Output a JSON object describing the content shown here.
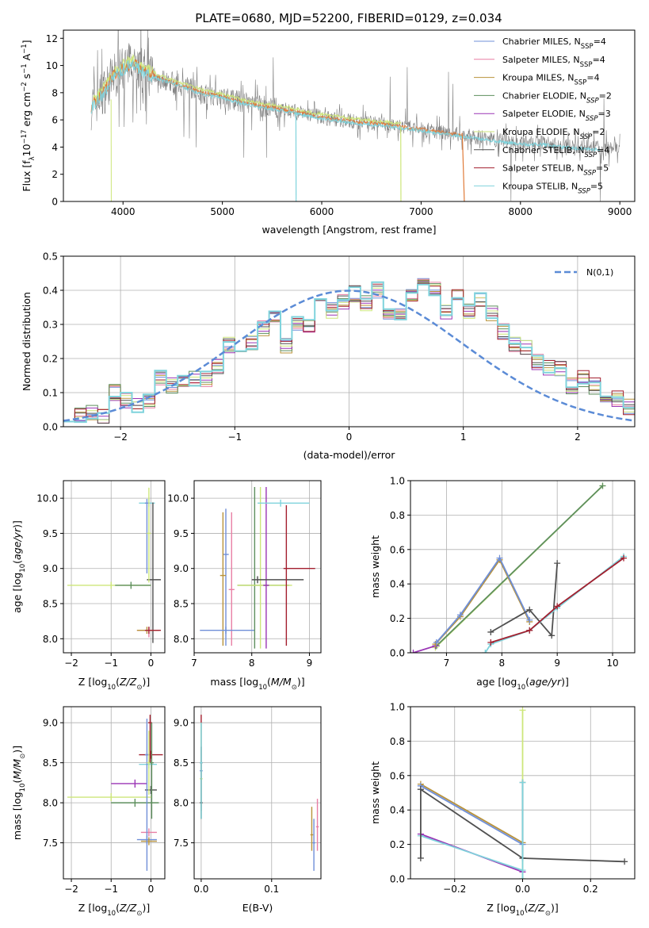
{
  "page_title": "PLATE=0680, MJD=52200, FIBERID=0129, z=0.034",
  "colors": {
    "Chabrier MILES": "#6f8fd8",
    "Salpeter MILES": "#e87fa4",
    "Kroupa MILES": "#b8923a",
    "Chabrier ELODIE": "#5e8f5e",
    "Salpeter ELODIE": "#9a35b5",
    "Kroupa ELODIE": "#cde67a",
    "Chabrier STELIB": "#505050",
    "Salpeter STELIB": "#a31f2e",
    "Kroupa STELIB": "#7fd3dc",
    "orange_model": "#e07b39",
    "data_grey": "#808080",
    "normal_curve": "#5b8bd6",
    "grid": "#b0b0b0"
  },
  "chart_data": [
    {
      "id": "spectrum",
      "type": "line",
      "title": "PLATE=0680, MJD=52200, FIBERID=0129, z=0.034",
      "xlabel": "wavelength [Angstrom, rest frame]",
      "ylabel_parts": [
        "Flux [f",
        "λ",
        "10",
        "−17",
        " erg cm",
        "−2",
        " s",
        "−1",
        " A",
        "−1",
        "]"
      ],
      "xlim": [
        3400,
        9150
      ],
      "ylim": [
        0,
        12.6
      ],
      "xticks": [
        4000,
        5000,
        6000,
        7000,
        8000,
        9000
      ],
      "yticks": [
        0,
        2,
        4,
        6,
        8,
        10,
        12
      ],
      "legend_position": "upper right",
      "legend": [
        {
          "name": "Chabrier MILES",
          "n": "4"
        },
        {
          "name": "Salpeter MILES",
          "n": "4"
        },
        {
          "name": "Kroupa MILES",
          "n": "4"
        },
        {
          "name": "Chabrier ELODIE",
          "n": "2"
        },
        {
          "name": "Salpeter ELODIE",
          "n": "3"
        },
        {
          "name": "Kroupa ELODIE",
          "n": "2"
        },
        {
          "name": "Chabrier STELIB",
          "n": "4"
        },
        {
          "name": "Salpeter STELIB",
          "n": "5"
        },
        {
          "name": "Kroupa STELIB",
          "n": "5"
        }
      ],
      "continuum_x": [
        3680,
        3800,
        3900,
        4000,
        4100,
        4200,
        4400,
        4600,
        4800,
        5000,
        5200,
        5400,
        5600,
        5800,
        6000,
        6200,
        6400,
        6600,
        6800,
        7000,
        7200,
        7400,
        7600,
        7800,
        8000,
        8200,
        8400,
        8600,
        8800
      ],
      "continuum_y": [
        7.0,
        8.0,
        9.2,
        9.8,
        10.2,
        9.6,
        9.0,
        8.5,
        8.0,
        7.7,
        7.3,
        7.0,
        6.8,
        6.5,
        6.2,
        6.0,
        5.8,
        5.7,
        5.5,
        5.3,
        5.1,
        4.9,
        4.7,
        4.5,
        4.3,
        4.3,
        4.1,
        4.0,
        3.9
      ]
    },
    {
      "id": "residuals",
      "type": "step",
      "xlabel": "(data-model)/error",
      "ylabel": "Normed distribution",
      "xlim": [
        -2.5,
        2.5
      ],
      "ylim": [
        0,
        0.5
      ],
      "xticks": [
        -2,
        -1,
        0,
        1,
        2
      ],
      "yticks": [
        0.0,
        0.1,
        0.2,
        0.3,
        0.4,
        0.5
      ],
      "bin_edges_start": -2.5,
      "bin_width": 0.1,
      "base_values": [
        0.04,
        0.03,
        0.045,
        0.03,
        0.1,
        0.08,
        0.06,
        0.075,
        0.14,
        0.12,
        0.13,
        0.14,
        0.14,
        0.18,
        0.24,
        0.22,
        0.25,
        0.29,
        0.32,
        0.24,
        0.3,
        0.3,
        0.37,
        0.34,
        0.37,
        0.39,
        0.36,
        0.4,
        0.34,
        0.33,
        0.38,
        0.41,
        0.4,
        0.34,
        0.38,
        0.34,
        0.37,
        0.33,
        0.28,
        0.24,
        0.23,
        0.19,
        0.17,
        0.17,
        0.12,
        0.14,
        0.12,
        0.08,
        0.08,
        0.06
      ],
      "normal_label": "N(0,1)",
      "legend_position": "upper right"
    },
    {
      "id": "age_vs_Z",
      "type": "errorbar",
      "xlabel": "Z [log10(Z/Z⊙)]",
      "ylabel": "age [log10(age/yr)]",
      "xlim": [
        -2.2,
        0.35
      ],
      "ylim": [
        7.8,
        10.25
      ],
      "xticks": [
        -2,
        -1,
        0
      ],
      "yticks": [
        8.0,
        8.5,
        9.0,
        9.5,
        10.0
      ],
      "points": [
        {
          "model": "Kroupa STELIB",
          "x": -0.05,
          "y": 9.93,
          "xerr": [
            0.25,
            0.15
          ],
          "yerr": [
            0.05,
            0.06
          ]
        },
        {
          "model": "Chabrier MILES",
          "x": -0.1,
          "y": 9.93,
          "xerr": [
            0.05,
            0.05
          ],
          "yerr": [
            1.0,
            0.06
          ]
        },
        {
          "model": "Chabrier STELIB",
          "x": 0.05,
          "y": 8.84,
          "xerr": [
            0.15,
            0.2
          ],
          "yerr": [
            0.9,
            1.1
          ]
        },
        {
          "model": "Kroupa ELODIE",
          "x": -1.0,
          "y": 8.76,
          "xerr": [
            1.1,
            1.0
          ],
          "yerr": [
            0.05,
            0.05
          ]
        },
        {
          "model": "Chabrier ELODIE",
          "x": -0.5,
          "y": 8.76,
          "xerr": [
            0.4,
            0.5
          ],
          "yerr": [
            0.05,
            0.05
          ]
        },
        {
          "model": "Kroupa ELODIE",
          "x": -0.05,
          "y": 9.5,
          "xerr": [
            0.05,
            0.05
          ],
          "yerr": [
            0.7,
            0.65
          ]
        },
        {
          "model": "Salpeter MILES",
          "x": -0.05,
          "y": 8.12,
          "xerr": [
            0.3,
            0.25
          ],
          "yerr": [
            0.1,
            0.05
          ]
        },
        {
          "model": "Kroupa MILES",
          "x": -0.1,
          "y": 8.12,
          "xerr": [
            0.25,
            0.3
          ],
          "yerr": [
            0.05,
            0.05
          ]
        },
        {
          "model": "Salpeter STELIB",
          "x": -0.05,
          "y": 8.12,
          "xerr": [
            0.1,
            0.3
          ],
          "yerr": [
            0.05,
            0.05
          ]
        }
      ]
    },
    {
      "id": "age_vs_mass",
      "type": "errorbar",
      "xlabel": "mass [log10(M/M⊙)]",
      "ylabel": "",
      "xlim": [
        7.0,
        9.2
      ],
      "ylim": [
        7.8,
        10.25
      ],
      "xticks": [
        7,
        8,
        9
      ],
      "yticks": [
        8.0,
        8.5,
        9.0,
        9.5,
        10.0
      ],
      "points": [
        {
          "model": "Chabrier MILES",
          "x": 7.55,
          "y": 9.2,
          "xerr": [
            0.05,
            0.05
          ],
          "yerr": [
            1.3,
            0.65
          ]
        },
        {
          "model": "Kroupa MILES",
          "x": 7.5,
          "y": 8.9,
          "xerr": [
            0.05,
            0.05
          ],
          "yerr": [
            1.0,
            0.9
          ]
        },
        {
          "model": "Salpeter MILES",
          "x": 7.65,
          "y": 8.7,
          "xerr": [
            0.05,
            0.05
          ],
          "yerr": [
            0.8,
            1.1
          ]
        },
        {
          "model": "Chabrier MILES",
          "x": 7.55,
          "y": 8.12,
          "xerr": [
            0.45,
            0.5
          ],
          "yerr": [
            0.05,
            0.05
          ]
        },
        {
          "model": "Chabrier ELODIE",
          "x": 8.05,
          "y": 8.76,
          "xerr": [
            0.3,
            0.6
          ],
          "yerr": [
            0.9,
            1.4
          ]
        },
        {
          "model": "Kroupa ELODIE",
          "x": 8.15,
          "y": 8.76,
          "xerr": [
            0.4,
            0.55
          ],
          "yerr": [
            0.9,
            1.4
          ]
        },
        {
          "model": "Salpeter ELODIE",
          "x": 8.25,
          "y": 8.76,
          "xerr": [
            0.05,
            0.05
          ],
          "yerr": [
            0.9,
            1.4
          ]
        },
        {
          "model": "Chabrier STELIB",
          "x": 8.1,
          "y": 8.84,
          "xerr": [
            0.1,
            0.8
          ],
          "yerr": [
            0.05,
            0.05
          ]
        },
        {
          "model": "Salpeter STELIB",
          "x": 8.6,
          "y": 9.0,
          "xerr": [
            0.05,
            0.5
          ],
          "yerr": [
            1.1,
            0.9
          ]
        },
        {
          "model": "Kroupa STELIB",
          "x": 8.5,
          "y": 9.93,
          "xerr": [
            0.4,
            0.5
          ],
          "yerr": [
            0.05,
            0.05
          ]
        }
      ]
    },
    {
      "id": "massweight_vs_age",
      "type": "line",
      "xlabel": "age [log10(age/yr)]",
      "ylabel": "mass weight",
      "xlim": [
        6.35,
        10.4
      ],
      "ylim": [
        0,
        1
      ],
      "xticks": [
        7,
        8,
        9,
        10
      ],
      "yticks": [
        0.0,
        0.2,
        0.4,
        0.6,
        0.8,
        1.0
      ],
      "series": [
        {
          "model": "Kroupa ELODIE",
          "x": [
            6.8,
            9.82
          ],
          "y": [
            0.03,
            0.97
          ]
        },
        {
          "model": "Chabrier ELODIE",
          "x": [
            6.82,
            9.82
          ],
          "y": [
            0.04,
            0.97
          ]
        },
        {
          "model": "Salpeter ELODIE",
          "x": [
            6.4,
            6.8
          ],
          "y": [
            0.0,
            0.04
          ]
        },
        {
          "model": "Kroupa MILES",
          "x": [
            6.8,
            7.25,
            7.96,
            8.5
          ],
          "y": [
            0.05,
            0.21,
            0.54,
            0.18
          ]
        },
        {
          "model": "Chabrier MILES",
          "x": [
            6.82,
            7.25,
            7.96,
            8.5
          ],
          "y": [
            0.06,
            0.22,
            0.55,
            0.19
          ]
        },
        {
          "model": "Chabrier STELIB",
          "x": [
            7.8,
            8.5,
            8.9,
            9.0
          ],
          "y": [
            0.12,
            0.25,
            0.1,
            0.52
          ]
        },
        {
          "model": "Kroupa STELIB",
          "x": [
            7.7,
            7.8,
            8.5,
            9.0,
            10.2
          ],
          "y": [
            0.0,
            0.05,
            0.13,
            0.26,
            0.56
          ]
        },
        {
          "model": "Salpeter STELIB",
          "x": [
            7.8,
            8.5,
            9.0,
            10.2
          ],
          "y": [
            0.06,
            0.13,
            0.27,
            0.55
          ]
        }
      ]
    },
    {
      "id": "mass_vs_Z",
      "type": "errorbar",
      "xlabel": "Z [log10(Z/Z⊙)]",
      "ylabel": "mass [log10(M/M⊙)]",
      "xlim": [
        -2.2,
        0.35
      ],
      "ylim": [
        7.05,
        9.2
      ],
      "xticks": [
        -2,
        -1,
        0
      ],
      "yticks": [
        7.5,
        8.0,
        8.5,
        9.0
      ],
      "points": [
        {
          "model": "Salpeter STELIB",
          "x": 0.0,
          "y": 8.6,
          "xerr": [
            0.3,
            0.3
          ],
          "yerr": [
            0.05,
            0.05
          ]
        },
        {
          "model": "Kroupa STELIB",
          "x": -0.05,
          "y": 8.48,
          "xerr": [
            0.25,
            0.2
          ],
          "yerr": [
            0.05,
            0.05
          ]
        },
        {
          "model": "Salpeter ELODIE",
          "x": -0.4,
          "y": 8.24,
          "xerr": [
            0.6,
            0.3
          ],
          "yerr": [
            0.05,
            0.05
          ]
        },
        {
          "model": "Chabrier STELIB",
          "x": 0.0,
          "y": 8.16,
          "xerr": [
            0.15,
            0.15
          ],
          "yerr": [
            0.05,
            0.05
          ]
        },
        {
          "model": "Kroupa ELODIE",
          "x": -1.0,
          "y": 8.07,
          "xerr": [
            1.1,
            1.0
          ],
          "yerr": [
            0.05,
            0.05
          ]
        },
        {
          "model": "Chabrier ELODIE",
          "x": -0.4,
          "y": 8.0,
          "xerr": [
            0.6,
            0.6
          ],
          "yerr": [
            0.05,
            0.05
          ]
        },
        {
          "model": "Salpeter MILES",
          "x": -0.05,
          "y": 7.63,
          "xerr": [
            0.2,
            0.2
          ],
          "yerr": [
            0.05,
            0.05
          ]
        },
        {
          "model": "Chabrier MILES",
          "x": -0.1,
          "y": 7.54,
          "xerr": [
            0.25,
            0.25
          ],
          "yerr": [
            0.05,
            0.05
          ]
        },
        {
          "model": "Kroupa MILES",
          "x": -0.05,
          "y": 7.52,
          "xerr": [
            0.2,
            0.2
          ],
          "yerr": [
            0.05,
            0.05
          ]
        },
        {
          "model": "Chabrier MILES",
          "x": -0.1,
          "y": 8.6,
          "xerr": [
            0.05,
            0.05
          ],
          "yerr": [
            1.45,
            0.45
          ]
        },
        {
          "model": "Salpeter STELIB",
          "x": -0.02,
          "y": 9.0,
          "xerr": [
            0.05,
            0.05
          ],
          "yerr": [
            0.5,
            0.1
          ]
        },
        {
          "model": "Kroupa ELODIE",
          "x": -0.05,
          "y": 8.5,
          "xerr": [
            0.05,
            0.05
          ],
          "yerr": [
            0.4,
            0.4
          ]
        },
        {
          "model": "Chabrier ELODIE",
          "x": 0.02,
          "y": 8.5,
          "xerr": [
            0.05,
            0.05
          ],
          "yerr": [
            0.7,
            0.5
          ]
        }
      ]
    },
    {
      "id": "mass_vs_ebv",
      "type": "errorbar",
      "xlabel": "E(B-V)",
      "ylabel": "",
      "xlim": [
        -0.01,
        0.17
      ],
      "ylim": [
        7.05,
        9.2
      ],
      "xticks": [
        0.0,
        0.1
      ],
      "yticks": [
        7.5,
        8.0,
        8.5,
        9.0
      ],
      "points": [
        {
          "model": "Salpeter STELIB",
          "x": 0.0,
          "y": 8.5,
          "xerr": [
            0.002,
            0.002
          ],
          "yerr": [
            0.6,
            0.6
          ]
        },
        {
          "model": "Chabrier MILES",
          "x": 0.0,
          "y": 8.4,
          "xerr": [
            0.002,
            0.002
          ],
          "yerr": [
            0.6,
            0.6
          ]
        },
        {
          "model": "Kroupa ELODIE",
          "x": 0.0,
          "y": 8.3,
          "xerr": [
            0.002,
            0.002
          ],
          "yerr": [
            0.5,
            0.7
          ]
        },
        {
          "model": "Chabrier STELIB",
          "x": 0.0,
          "y": 8.0,
          "xerr": [
            0.002,
            0.002
          ],
          "yerr": [
            0.2,
            0.7
          ]
        },
        {
          "model": "Kroupa STELIB",
          "x": 0.0,
          "y": 8.5,
          "xerr": [
            0.002,
            0.002
          ],
          "yerr": [
            0.7,
            0.5
          ]
        },
        {
          "model": "Salpeter MILES",
          "x": 0.165,
          "y": 7.7,
          "xerr": [
            0.002,
            0.002
          ],
          "yerr": [
            0.3,
            0.35
          ]
        },
        {
          "model": "Chabrier MILES",
          "x": 0.16,
          "y": 7.5,
          "xerr": [
            0.002,
            0.002
          ],
          "yerr": [
            0.35,
            0.3
          ]
        },
        {
          "model": "Kroupa MILES",
          "x": 0.157,
          "y": 7.6,
          "xerr": [
            0.002,
            0.002
          ],
          "yerr": [
            0.2,
            0.35
          ]
        }
      ]
    },
    {
      "id": "massweight_vs_Z",
      "type": "line",
      "xlabel": "Z [log10(Z/Z⊙)]",
      "ylabel": "mass weight",
      "xlim": [
        -0.33,
        0.33
      ],
      "ylim": [
        0,
        1
      ],
      "xticks": [
        -0.2,
        0.0,
        0.2
      ],
      "yticks": [
        0.0,
        0.2,
        0.4,
        0.6,
        0.8,
        1.0
      ],
      "series": [
        {
          "model": "Kroupa MILES",
          "x": [
            -0.3,
            0.0
          ],
          "y": [
            0.55,
            0.21
          ]
        },
        {
          "model": "Chabrier MILES",
          "x": [
            -0.3,
            0.0
          ],
          "y": [
            0.54,
            0.2
          ]
        },
        {
          "model": "Chabrier STELIB",
          "x": [
            -0.3,
            0.0,
            0.3
          ],
          "y": [
            0.52,
            0.12,
            0.1
          ]
        },
        {
          "model": "Salpeter ELODIE",
          "x": [
            -0.3,
            0.0
          ],
          "y": [
            0.26,
            0.04
          ]
        },
        {
          "model": "Kroupa STELIB",
          "x": [
            -0.3,
            0.0
          ],
          "y": [
            0.25,
            0.05
          ]
        },
        {
          "model": "Kroupa ELODIE",
          "x": [
            0.0,
            0.0
          ],
          "y": [
            0.0,
            0.98
          ]
        },
        {
          "model": "Chabrier STELIB",
          "x": [
            -0.3,
            -0.3
          ],
          "y": [
            0.12,
            0.52
          ]
        },
        {
          "model": "Chabrier STELIB",
          "x": [
            0.0,
            0.0
          ],
          "y": [
            0.12,
            0.56
          ]
        },
        {
          "model": "Kroupa STELIB",
          "x": [
            0.0,
            0.0
          ],
          "y": [
            0.0,
            0.56
          ]
        }
      ]
    }
  ]
}
